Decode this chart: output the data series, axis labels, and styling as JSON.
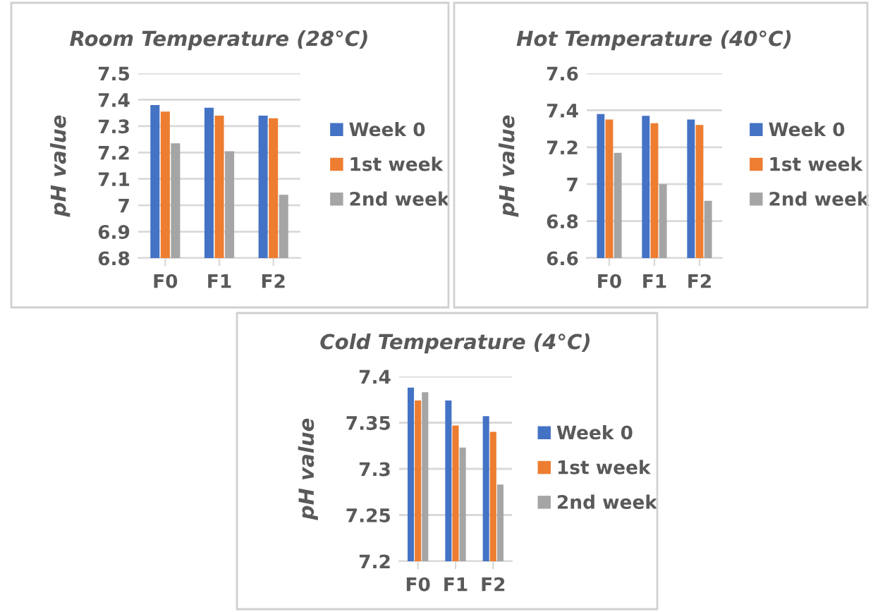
{
  "chart_data": [
    {
      "type": "bar",
      "title": "Room Temperature (28°C)",
      "ylabel": "pH value",
      "categories": [
        "F0",
        "F1",
        "F2"
      ],
      "ylim": [
        6.8,
        7.5
      ],
      "yticks": [
        6.8,
        6.9,
        7,
        7.1,
        7.2,
        7.3,
        7.4,
        7.5
      ],
      "grid": "y",
      "legend": "right",
      "series": [
        {
          "name": "Week 0",
          "color": "#4472c4",
          "values": [
            7.38,
            7.37,
            7.34
          ]
        },
        {
          "name": "1st week",
          "color": "#ed7d31",
          "values": [
            7.355,
            7.34,
            7.33
          ]
        },
        {
          "name": "2nd week",
          "color": "#a5a5a5",
          "values": [
            7.235,
            7.205,
            7.04
          ]
        }
      ]
    },
    {
      "type": "bar",
      "title": "Hot Temperature (40°C)",
      "ylabel": "pH value",
      "categories": [
        "F0",
        "F1",
        "F2"
      ],
      "ylim": [
        6.6,
        7.6
      ],
      "yticks": [
        6.6,
        6.8,
        7,
        7.2,
        7.4,
        7.6
      ],
      "grid": "y",
      "legend": "right",
      "series": [
        {
          "name": "Week 0",
          "color": "#4472c4",
          "values": [
            7.38,
            7.37,
            7.35
          ]
        },
        {
          "name": "1st week",
          "color": "#ed7d31",
          "values": [
            7.35,
            7.33,
            7.32
          ]
        },
        {
          "name": "2nd week",
          "color": "#a5a5a5",
          "values": [
            7.17,
            7.0,
            6.91
          ]
        }
      ]
    },
    {
      "type": "bar",
      "title": "Cold Temperature (4°C)",
      "ylabel": "pH value",
      "categories": [
        "F0",
        "F1",
        "F2"
      ],
      "ylim": [
        7.2,
        7.4
      ],
      "yticks": [
        7.2,
        7.25,
        7.3,
        7.35,
        7.4
      ],
      "grid": "y",
      "legend": "right",
      "series": [
        {
          "name": "Week 0",
          "color": "#4472c4",
          "values": [
            7.388,
            7.374,
            7.357
          ]
        },
        {
          "name": "1st week",
          "color": "#ed7d31",
          "values": [
            7.374,
            7.347,
            7.34
          ]
        },
        {
          "name": "2nd week",
          "color": "#a5a5a5",
          "values": [
            7.383,
            7.323,
            7.283
          ]
        }
      ]
    }
  ]
}
